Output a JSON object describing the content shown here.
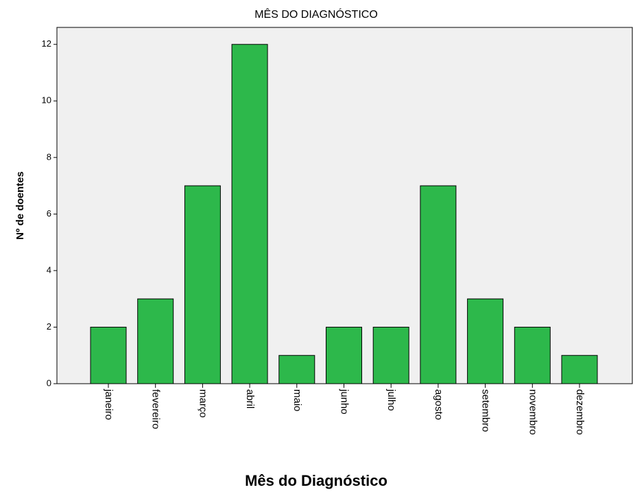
{
  "chart_data": {
    "type": "bar",
    "title": "MÊS DO DIAGNÓSTICO",
    "x_label": "Mês do Diagnóstico",
    "y_label": "Nº de doentes",
    "categories": [
      "janeiro",
      "fevereiro",
      "março",
      "abril",
      "maio",
      "junho",
      "julho",
      "agosto",
      "setembro",
      "novembro",
      "dezembro"
    ],
    "values": [
      2,
      3,
      7,
      12,
      1,
      2,
      2,
      7,
      3,
      2,
      1
    ],
    "color": "#2db84b",
    "ylim": [
      0,
      12.6
    ],
    "yticks": [
      0,
      2,
      4,
      6,
      8,
      10,
      12
    ],
    "grid": false
  }
}
